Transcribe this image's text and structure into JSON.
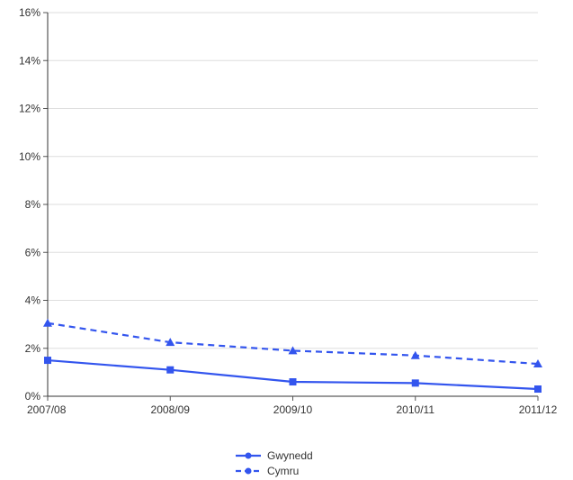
{
  "chart_data": {
    "type": "line",
    "categories": [
      "2007/08",
      "2008/09",
      "2009/10",
      "2010/11",
      "2011/12"
    ],
    "series": [
      {
        "name": "Gwynedd",
        "values": [
          1.5,
          1.1,
          0.6,
          0.55,
          0.3
        ],
        "color": "#3355ee",
        "style": "solid",
        "marker": "square"
      },
      {
        "name": "Cymru",
        "values": [
          3.05,
          2.25,
          1.9,
          1.7,
          1.35
        ],
        "color": "#3355ee",
        "style": "dashed",
        "marker": "triangle"
      }
    ],
    "y_ticks": [
      "0%",
      "2%",
      "4%",
      "6%",
      "8%",
      "10%",
      "12%",
      "14%",
      "16%"
    ],
    "ylim": [
      0,
      16
    ],
    "grid": true,
    "legend_position": "bottom-center",
    "title": "",
    "xlabel": "",
    "ylabel": ""
  }
}
